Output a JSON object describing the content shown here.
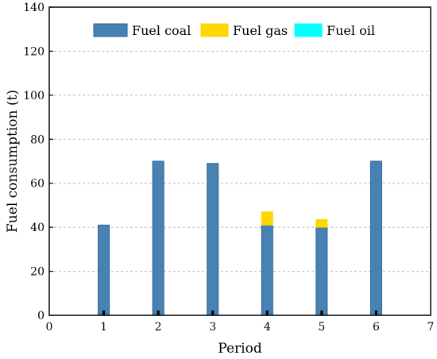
{
  "chart_data": {
    "type": "bar",
    "stacked": true,
    "xlabel": "Period",
    "ylabel": "Fuel consumption (t)",
    "xlim": [
      0,
      7
    ],
    "ylim": [
      0,
      140
    ],
    "xticks": [
      0,
      1,
      2,
      3,
      4,
      5,
      6,
      7
    ],
    "yticks": [
      0,
      20,
      40,
      60,
      80,
      100,
      120,
      140
    ],
    "grid": "horizontal-dashed",
    "legend_position": "top",
    "categories": [
      1,
      2,
      3,
      4,
      5,
      6
    ],
    "series": [
      {
        "name": "Fuel coal",
        "color": "#4682B4",
        "values": [
          41,
          70,
          69,
          41,
          40,
          70
        ]
      },
      {
        "name": "Fuel gas",
        "color": "#FFD700",
        "values": [
          0,
          0,
          0,
          6,
          3.5,
          0
        ]
      },
      {
        "name": "Fuel oil",
        "color": "#00FFFF",
        "values": [
          0,
          0,
          0,
          0,
          0,
          0
        ]
      }
    ]
  }
}
